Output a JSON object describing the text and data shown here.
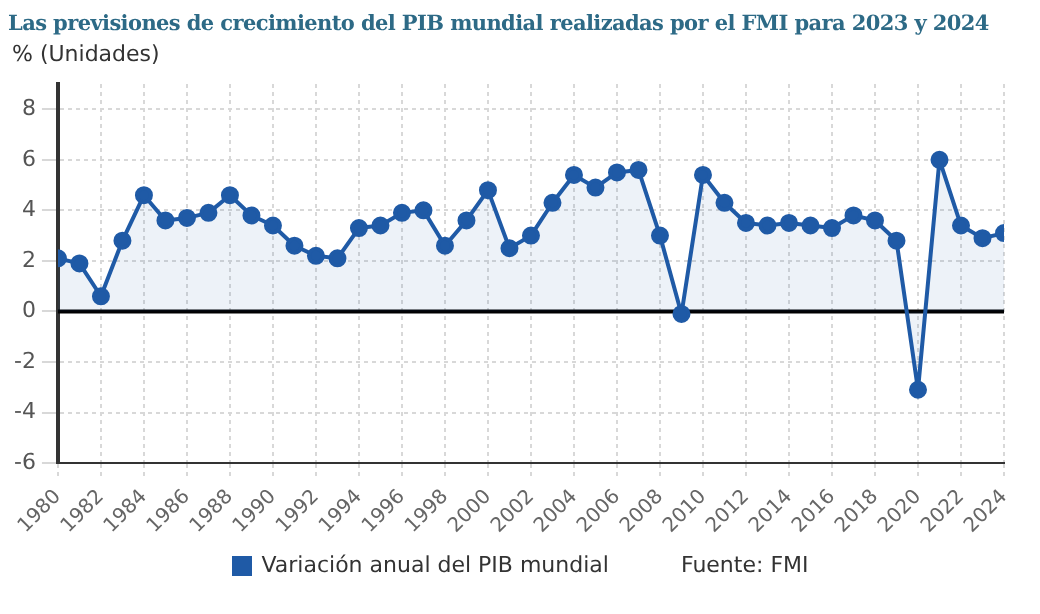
{
  "chart_data": {
    "type": "area",
    "title": "Las previsiones de crecimiento del PIB mundial realizadas por el FMI para 2023 y 2024",
    "ylabel": "% (Unidades)",
    "x": [
      1980,
      1981,
      1982,
      1983,
      1984,
      1985,
      1986,
      1987,
      1988,
      1989,
      1990,
      1991,
      1992,
      1993,
      1994,
      1995,
      1996,
      1997,
      1998,
      1999,
      2000,
      2001,
      2002,
      2003,
      2004,
      2005,
      2006,
      2007,
      2008,
      2009,
      2010,
      2011,
      2012,
      2013,
      2014,
      2015,
      2016,
      2017,
      2018,
      2019,
      2020,
      2021,
      2022,
      2023,
      2024
    ],
    "series": [
      {
        "name": "Variación anual del PIB mundial",
        "color": "#1f5aa6",
        "values": [
          2.1,
          1.9,
          0.6,
          2.8,
          4.6,
          3.6,
          3.7,
          3.9,
          4.6,
          3.8,
          3.4,
          2.6,
          2.2,
          2.1,
          3.3,
          3.4,
          3.9,
          4.0,
          2.6,
          3.6,
          4.8,
          2.5,
          3.0,
          4.3,
          5.4,
          4.9,
          5.5,
          5.6,
          3.0,
          -0.1,
          5.4,
          4.3,
          3.5,
          3.4,
          3.5,
          3.4,
          3.3,
          3.8,
          3.6,
          2.8,
          -3.1,
          6.0,
          3.4,
          2.9,
          3.1
        ]
      }
    ],
    "xlim": [
      1980,
      2024
    ],
    "xticks": [
      1980,
      1982,
      1984,
      1986,
      1988,
      1990,
      1992,
      1994,
      1996,
      1998,
      2000,
      2002,
      2004,
      2006,
      2008,
      2010,
      2012,
      2014,
      2016,
      2018,
      2020,
      2022,
      2024
    ],
    "ylim": [
      -6,
      9
    ],
    "yticks": [
      -6,
      -4,
      -2,
      0,
      2,
      4,
      6,
      8
    ],
    "ref_lines": [
      {
        "axis": "y",
        "value": 0,
        "color": "#000000"
      }
    ],
    "grid": true,
    "legend": "bottom",
    "marker": "circle",
    "line_style": "solid",
    "annotations": [
      "Fuente: FMI"
    ]
  }
}
